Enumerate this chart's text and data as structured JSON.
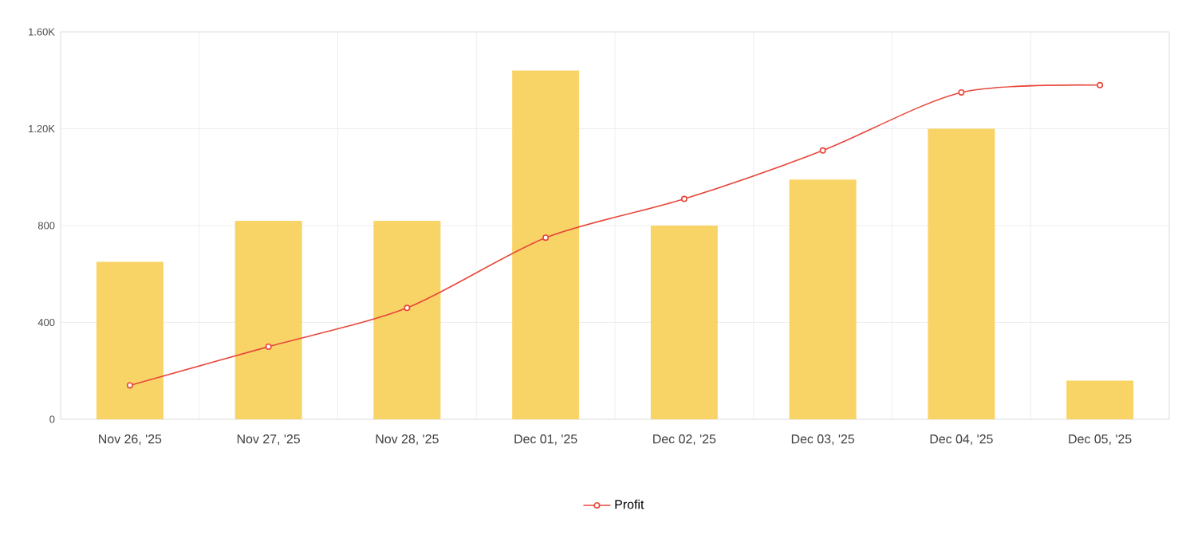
{
  "chart_data": {
    "type": "bar",
    "categories": [
      "Nov 26, '25",
      "Nov 27, '25",
      "Nov 28, '25",
      "Dec 01, '25",
      "Dec 02, '25",
      "Dec 03, '25",
      "Dec 04, '25",
      "Dec 05, '25"
    ],
    "series": [
      {
        "color": "#f7cf55",
        "values": [
          650,
          820,
          820,
          1440,
          800,
          990,
          1200,
          160
        ]
      },
      {
        "type": "line",
        "name": "Profit",
        "color": "#e8473b",
        "marker": "circle",
        "values": [
          140,
          300,
          460,
          750,
          910,
          1110,
          1350,
          1380
        ]
      }
    ],
    "ylim": [
      0,
      1600
    ],
    "yticks": [
      0,
      400,
      800,
      {
        "value": 1200,
        "label": "1.20K"
      },
      {
        "value": 1600,
        "label": "1.60K"
      }
    ],
    "grid": true,
    "legend": "bottom"
  }
}
